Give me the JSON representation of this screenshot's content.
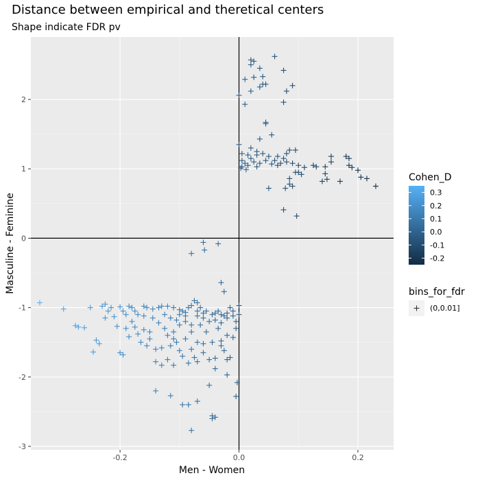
{
  "chart_data": {
    "type": "scatter",
    "title": "Distance between empirical and theretical centers",
    "subtitle": "Shape indicate FDR pv",
    "xlabel": "Men - Women",
    "ylabel": "Masculine - Feminine",
    "xlim": [
      -0.35,
      0.26
    ],
    "ylim": [
      -3.05,
      2.9
    ],
    "x_ticks": [
      -0.2,
      0.0,
      0.2
    ],
    "x_tick_labels": [
      "-0.2",
      "0.0",
      "0.2"
    ],
    "y_ticks": [
      -3,
      -2,
      -1,
      0,
      1,
      2
    ],
    "y_tick_labels": [
      "-3",
      "-2",
      "-1",
      "0",
      "1",
      "2"
    ],
    "grid": true,
    "reference_lines": {
      "x": 0,
      "y": 0
    },
    "marker": "plus",
    "legend_placement": "right",
    "color_legend": {
      "title": "Cohen_D",
      "min": -0.25,
      "max": 0.35,
      "ticks": [
        0.3,
        0.2,
        0.1,
        0.0,
        -0.1,
        -0.2
      ],
      "tick_labels": [
        "0.3",
        "0.2",
        "0.1",
        "0.0",
        "-0.1",
        "-0.2"
      ],
      "low_color": "#132B43",
      "high_color": "#56B1F7"
    },
    "shape_legend": {
      "title": "bins_for_fdr",
      "entries": [
        {
          "label": "(0,0.01]",
          "symbol": "+"
        }
      ]
    },
    "points": [
      [
        0.02,
        2.57
      ],
      [
        0.025,
        2.55
      ],
      [
        0.06,
        2.62
      ],
      [
        0.02,
        2.5
      ],
      [
        0.035,
        2.45
      ],
      [
        0.075,
        2.42
      ],
      [
        0.01,
        2.29
      ],
      [
        0.025,
        2.32
      ],
      [
        0.04,
        2.33
      ],
      [
        0.04,
        2.22
      ],
      [
        0.045,
        2.22
      ],
      [
        0.09,
        2.2
      ],
      [
        0.035,
        2.18
      ],
      [
        0.02,
        2.12
      ],
      [
        0.08,
        2.12
      ],
      [
        0.0,
        2.06
      ],
      [
        0.075,
        1.96
      ],
      [
        0.01,
        1.93
      ],
      [
        0.045,
        1.67
      ],
      [
        0.045,
        1.65
      ],
      [
        0.055,
        1.49
      ],
      [
        0.035,
        1.43
      ],
      [
        0.0,
        1.35
      ],
      [
        0.02,
        1.3
      ],
      [
        0.03,
        1.25
      ],
      [
        0.005,
        1.22
      ],
      [
        0.015,
        1.2
      ],
      [
        0.03,
        1.2
      ],
      [
        0.04,
        1.22
      ],
      [
        0.05,
        1.18
      ],
      [
        0.065,
        1.18
      ],
      [
        0.075,
        1.15
      ],
      [
        0.085,
        1.27
      ],
      [
        0.095,
        1.27
      ],
      [
        0.08,
        1.22
      ],
      [
        0.02,
        1.15
      ],
      [
        0.005,
        1.12
      ],
      [
        0.01,
        1.08
      ],
      [
        0.025,
        1.1
      ],
      [
        0.035,
        1.08
      ],
      [
        0.045,
        1.12
      ],
      [
        0.055,
        1.07
      ],
      [
        0.065,
        1.05
      ],
      [
        0.08,
        1.1
      ],
      [
        0.09,
        1.08
      ],
      [
        0.1,
        1.05
      ],
      [
        0.11,
        1.02
      ],
      [
        0.125,
        1.05
      ],
      [
        0.13,
        1.03
      ],
      [
        0.145,
        1.03
      ],
      [
        0.155,
        1.18
      ],
      [
        0.155,
        1.1
      ],
      [
        0.17,
        0.82
      ],
      [
        0.18,
        1.18
      ],
      [
        0.185,
        1.15
      ],
      [
        0.185,
        1.05
      ],
      [
        0.19,
        1.02
      ],
      [
        0.2,
        0.98
      ],
      [
        0.205,
        0.88
      ],
      [
        0.215,
        0.86
      ],
      [
        0.23,
        0.75
      ],
      [
        0.005,
        1.03
      ],
      [
        0.015,
        1.05
      ],
      [
        0.03,
        1.03
      ],
      [
        0.05,
        0.72
      ],
      [
        0.078,
        0.72
      ],
      [
        0.09,
        0.75
      ],
      [
        0.085,
        0.78
      ],
      [
        0.1,
        0.95
      ],
      [
        0.105,
        0.92
      ],
      [
        0.095,
        0.95
      ],
      [
        0.085,
        0.86
      ],
      [
        0.145,
        0.93
      ],
      [
        0.148,
        0.85
      ],
      [
        0.14,
        0.82
      ],
      [
        0.075,
        0.41
      ],
      [
        0.097,
        0.32
      ],
      [
        0.003,
        1.01
      ],
      [
        0.012,
        0.99
      ],
      [
        0.06,
        1.12
      ],
      [
        0.07,
        1.08
      ],
      [
        -0.035,
        -0.08
      ],
      [
        -0.06,
        -0.06
      ],
      [
        -0.08,
        -0.22
      ],
      [
        -0.058,
        -0.17
      ],
      [
        -0.03,
        -0.64
      ],
      [
        -0.025,
        -0.77
      ],
      [
        -0.335,
        -0.93
      ],
      [
        -0.295,
        -1.02
      ],
      [
        -0.275,
        -1.26
      ],
      [
        -0.27,
        -1.28
      ],
      [
        -0.26,
        -1.29
      ],
      [
        -0.245,
        -1.64
      ],
      [
        -0.23,
        -0.98
      ],
      [
        -0.225,
        -0.95
      ],
      [
        -0.22,
        -1.05
      ],
      [
        -0.215,
        -1.0
      ],
      [
        -0.2,
        -0.99
      ],
      [
        -0.195,
        -1.05
      ],
      [
        -0.185,
        -0.98
      ],
      [
        -0.18,
        -1.0
      ],
      [
        -0.175,
        -1.05
      ],
      [
        -0.17,
        -1.1
      ],
      [
        -0.16,
        -0.98
      ],
      [
        -0.155,
        -1.0
      ],
      [
        -0.145,
        -1.02
      ],
      [
        -0.135,
        -1.0
      ],
      [
        -0.12,
        -0.98
      ],
      [
        -0.11,
        -1.0
      ],
      [
        -0.1,
        -1.03
      ],
      [
        -0.095,
        -1.05
      ],
      [
        -0.09,
        -1.07
      ],
      [
        -0.085,
        -1.0
      ],
      [
        -0.08,
        -0.97
      ],
      [
        -0.075,
        -0.9
      ],
      [
        -0.07,
        -0.93
      ],
      [
        -0.065,
        -1.0
      ],
      [
        -0.055,
        -1.05
      ],
      [
        -0.045,
        -1.1
      ],
      [
        -0.04,
        -1.08
      ],
      [
        -0.035,
        -1.05
      ],
      [
        -0.025,
        -1.12
      ],
      [
        -0.015,
        -1.0
      ],
      [
        -0.01,
        -1.05
      ],
      [
        -0.005,
        -1.2
      ],
      [
        0.0,
        -0.97
      ],
      [
        0.0,
        -1.1
      ],
      [
        -0.225,
        -1.15
      ],
      [
        -0.21,
        -1.13
      ],
      [
        -0.205,
        -1.27
      ],
      [
        -0.2,
        -1.65
      ],
      [
        -0.195,
        -1.68
      ],
      [
        -0.19,
        -1.3
      ],
      [
        -0.185,
        -1.42
      ],
      [
        -0.18,
        -1.2
      ],
      [
        -0.17,
        -1.38
      ],
      [
        -0.165,
        -1.5
      ],
      [
        -0.16,
        -1.32
      ],
      [
        -0.155,
        -1.55
      ],
      [
        -0.15,
        -1.45
      ],
      [
        -0.14,
        -1.6
      ],
      [
        -0.135,
        -1.22
      ],
      [
        -0.13,
        -1.58
      ],
      [
        -0.125,
        -1.3
      ],
      [
        -0.12,
        -1.75
      ],
      [
        -0.115,
        -1.55
      ],
      [
        -0.11,
        -1.35
      ],
      [
        -0.105,
        -1.5
      ],
      [
        -0.1,
        -1.25
      ],
      [
        -0.095,
        -1.7
      ],
      [
        -0.09,
        -1.45
      ],
      [
        -0.085,
        -1.8
      ],
      [
        -0.08,
        -1.6
      ],
      [
        -0.075,
        -1.72
      ],
      [
        -0.07,
        -1.5
      ],
      [
        -0.065,
        -1.25
      ],
      [
        -0.06,
        -1.65
      ],
      [
        -0.055,
        -1.35
      ],
      [
        -0.05,
        -1.75
      ],
      [
        -0.045,
        -1.5
      ],
      [
        -0.04,
        -1.88
      ],
      [
        -0.035,
        -1.3
      ],
      [
        -0.03,
        -1.55
      ],
      [
        -0.025,
        -1.62
      ],
      [
        -0.02,
        -1.4
      ],
      [
        -0.015,
        -1.72
      ],
      [
        -0.01,
        -1.43
      ],
      [
        -0.005,
        -1.3
      ],
      [
        -0.25,
        -1.0
      ],
      [
        -0.24,
        -1.47
      ],
      [
        -0.235,
        -1.52
      ],
      [
        -0.02,
        -1.97
      ],
      [
        -0.003,
        -2.08
      ],
      [
        -0.005,
        -2.28
      ],
      [
        -0.05,
        -2.12
      ],
      [
        -0.07,
        -2.35
      ],
      [
        -0.085,
        -2.4
      ],
      [
        -0.095,
        -2.4
      ],
      [
        -0.115,
        -2.27
      ],
      [
        -0.14,
        -2.2
      ],
      [
        -0.045,
        -2.56
      ],
      [
        -0.04,
        -2.58
      ],
      [
        -0.045,
        -2.6
      ],
      [
        -0.08,
        -2.77
      ],
      [
        -0.13,
        -0.98
      ],
      [
        -0.125,
        -1.1
      ],
      [
        -0.115,
        -1.15
      ],
      [
        -0.105,
        -1.18
      ],
      [
        -0.1,
        -1.1
      ],
      [
        -0.09,
        -1.2
      ],
      [
        -0.08,
        -1.25
      ],
      [
        -0.07,
        -1.12
      ],
      [
        -0.06,
        -1.15
      ],
      [
        -0.05,
        -1.2
      ],
      [
        -0.04,
        -1.18
      ],
      [
        -0.03,
        -1.22
      ],
      [
        -0.02,
        -1.15
      ],
      [
        -0.01,
        -1.12
      ],
      [
        -0.145,
        -1.15
      ],
      [
        -0.16,
        -1.12
      ],
      [
        -0.175,
        -1.28
      ],
      [
        -0.19,
        -1.1
      ],
      [
        -0.07,
        -1.05
      ],
      [
        -0.06,
        -1.08
      ],
      [
        -0.02,
        -1.08
      ],
      [
        -0.03,
        -1.1
      ],
      [
        -0.09,
        -1.12
      ],
      [
        -0.11,
        -1.45
      ],
      [
        -0.15,
        -1.35
      ],
      [
        -0.12,
        -1.4
      ],
      [
        -0.03,
        -1.48
      ],
      [
        -0.06,
        -1.52
      ],
      [
        -0.08,
        -1.35
      ],
      [
        -0.1,
        -1.62
      ],
      [
        -0.14,
        -1.78
      ],
      [
        -0.13,
        -1.83
      ],
      [
        -0.11,
        -1.83
      ],
      [
        -0.07,
        -1.78
      ],
      [
        -0.04,
        -1.73
      ],
      [
        -0.02,
        -1.75
      ]
    ]
  }
}
